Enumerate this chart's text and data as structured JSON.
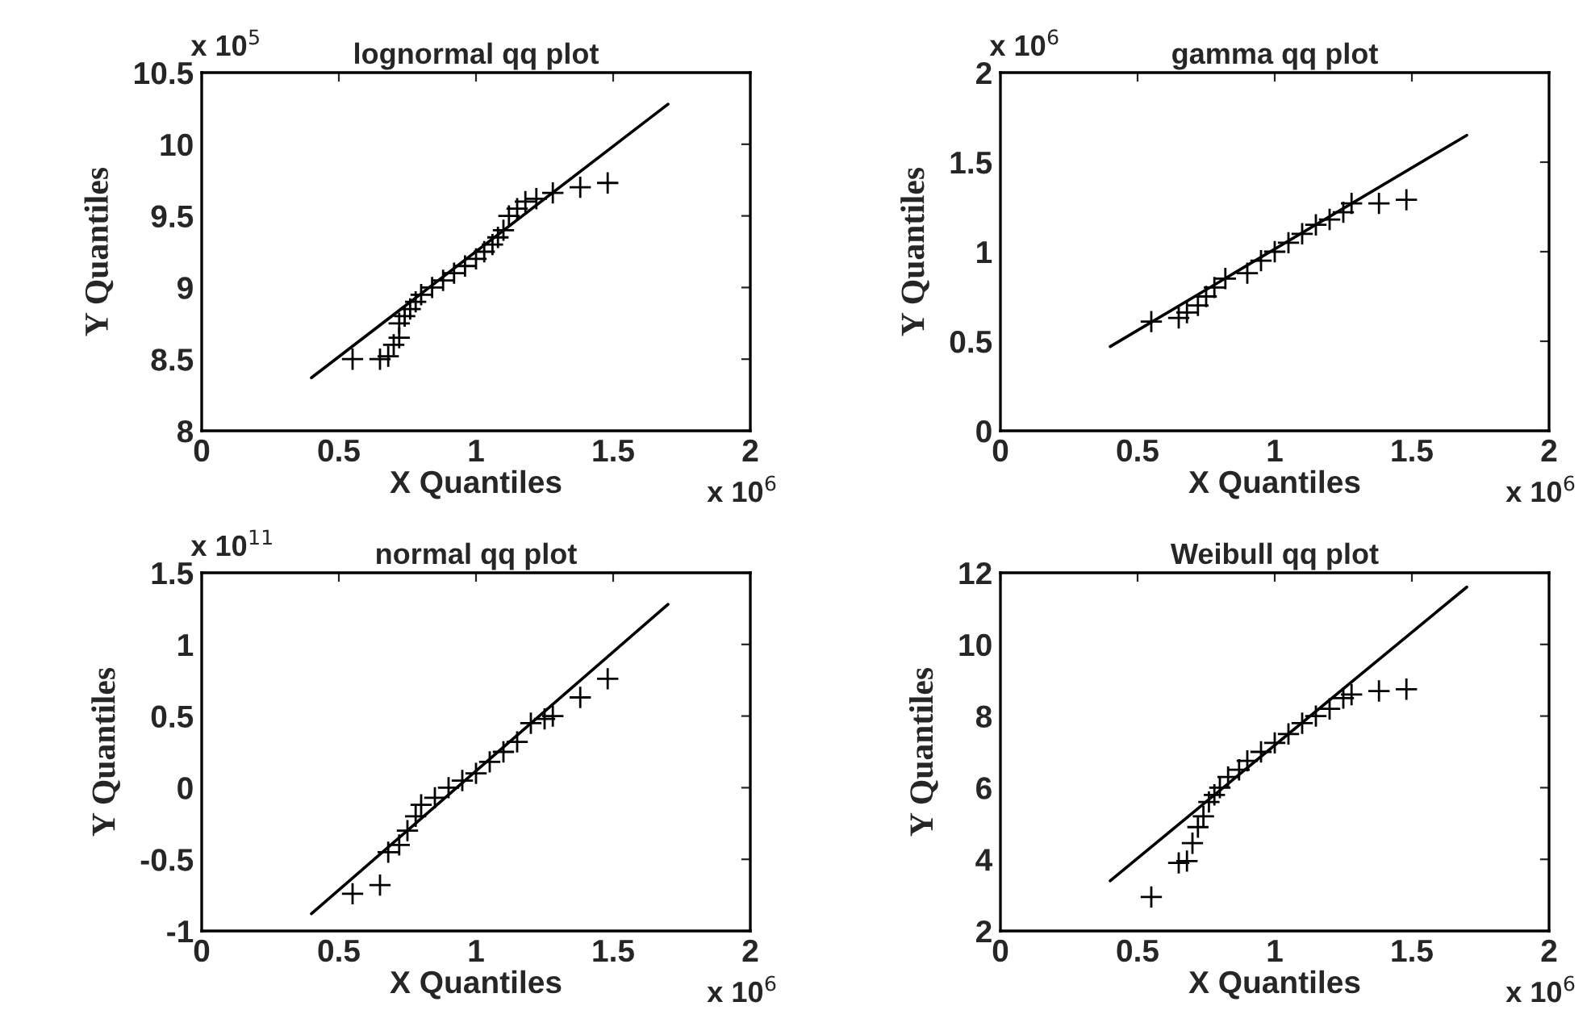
{
  "chart_data": [
    {
      "type": "scatter",
      "title": "lognormal qq plot",
      "xlabel": "X Quantiles",
      "ylabel": "Y Quantiles",
      "annotations": [
        "x 10$^{5}$",
        "x 10$^{6}$"
      ],
      "xlim": [
        0,
        2
      ],
      "xticks": [
        0,
        0.5,
        1,
        1.5,
        2
      ],
      "ylim": [
        8,
        10.5
      ],
      "yticks": [
        8,
        8.5,
        9,
        9.5,
        10,
        10.5
      ],
      "grid": false,
      "series": [
        {
          "marker": "cross",
          "color": "#000000",
          "x": [
            0.55,
            0.65,
            0.68,
            0.7,
            0.72,
            0.72,
            0.74,
            0.76,
            0.78,
            0.8,
            0.84,
            0.88,
            0.92,
            0.96,
            1.0,
            1.03,
            1.06,
            1.08,
            1.1,
            1.12,
            1.15,
            1.18,
            1.22,
            1.28,
            1.38,
            1.48
          ],
          "values": [
            8.5,
            8.5,
            8.52,
            8.6,
            8.65,
            8.75,
            8.8,
            8.85,
            8.9,
            8.95,
            9.0,
            9.05,
            9.1,
            9.15,
            9.2,
            9.25,
            9.3,
            9.35,
            9.4,
            9.5,
            9.55,
            9.6,
            9.62,
            9.66,
            9.7,
            9.73
          ]
        },
        {
          "type": "line",
          "marker": "none",
          "line_style": "solid",
          "color": "#000000",
          "x": [
            0.4,
            1.7
          ],
          "values": [
            8.37,
            10.28
          ]
        }
      ]
    },
    {
      "type": "scatter",
      "title": "gamma qq plot",
      "xlabel": "X Quantiles",
      "ylabel": "Y Quantiles",
      "annotations": [
        "x 10$^{6}$",
        "x 10$^{6}$"
      ],
      "xlim": [
        0,
        2
      ],
      "xticks": [
        0,
        0.5,
        1,
        1.5,
        2
      ],
      "ylim": [
        0,
        2
      ],
      "yticks": [
        0,
        0.5,
        1,
        1.5,
        2
      ],
      "grid": false,
      "series": [
        {
          "marker": "cross",
          "color": "#000000",
          "x": [
            0.55,
            0.65,
            0.68,
            0.72,
            0.75,
            0.78,
            0.82,
            0.9,
            0.95,
            1.0,
            1.05,
            1.1,
            1.15,
            1.2,
            1.25,
            1.28,
            1.38,
            1.48
          ],
          "values": [
            0.61,
            0.63,
            0.66,
            0.7,
            0.75,
            0.8,
            0.85,
            0.88,
            0.95,
            1.0,
            1.05,
            1.1,
            1.15,
            1.18,
            1.22,
            1.27,
            1.27,
            1.29
          ]
        },
        {
          "type": "line",
          "marker": "none",
          "line_style": "solid",
          "color": "#000000",
          "x": [
            0.4,
            1.7
          ],
          "values": [
            0.47,
            1.65
          ]
        }
      ]
    },
    {
      "type": "scatter",
      "title": "normal qq plot",
      "xlabel": "X Quantiles",
      "ylabel": "Y Quantiles",
      "annotations": [
        "x 10$^{11}$",
        "x 10$^{6}$"
      ],
      "xlim": [
        0,
        2
      ],
      "xticks": [
        0,
        0.5,
        1,
        1.5,
        2
      ],
      "ylim": [
        -1,
        1.5
      ],
      "yticks": [
        -1,
        -0.5,
        0,
        0.5,
        1,
        1.5
      ],
      "grid": false,
      "series": [
        {
          "marker": "cross",
          "color": "#000000",
          "x": [
            0.55,
            0.65,
            0.68,
            0.72,
            0.75,
            0.78,
            0.8,
            0.85,
            0.9,
            0.95,
            1.0,
            1.05,
            1.1,
            1.15,
            1.2,
            1.25,
            1.28,
            1.38,
            1.48
          ],
          "values": [
            -0.74,
            -0.68,
            -0.45,
            -0.4,
            -0.3,
            -0.2,
            -0.12,
            -0.07,
            0.0,
            0.05,
            0.1,
            0.18,
            0.25,
            0.32,
            0.45,
            0.48,
            0.5,
            0.63,
            0.76
          ]
        },
        {
          "type": "line",
          "marker": "none",
          "line_style": "solid",
          "color": "#000000",
          "x": [
            0.4,
            1.7
          ],
          "values": [
            -0.88,
            1.28
          ]
        }
      ]
    },
    {
      "type": "scatter",
      "title": "Weibull qq plot",
      "xlabel": "X Quantiles",
      "ylabel": "Y Quantiles",
      "annotations": [
        "x 10$^{6}$"
      ],
      "xlim": [
        0,
        2
      ],
      "xticks": [
        0,
        0.5,
        1,
        1.5,
        2
      ],
      "ylim": [
        2,
        12
      ],
      "yticks": [
        2,
        4,
        6,
        8,
        10,
        12
      ],
      "grid": false,
      "series": [
        {
          "marker": "cross",
          "color": "#000000",
          "x": [
            0.55,
            0.65,
            0.68,
            0.7,
            0.72,
            0.74,
            0.76,
            0.78,
            0.8,
            0.83,
            0.87,
            0.9,
            0.95,
            1.0,
            1.05,
            1.1,
            1.15,
            1.2,
            1.25,
            1.28,
            1.38,
            1.48
          ],
          "values": [
            2.95,
            3.9,
            3.95,
            4.45,
            4.9,
            5.2,
            5.6,
            5.8,
            6.0,
            6.3,
            6.5,
            6.75,
            7.0,
            7.25,
            7.5,
            7.8,
            8.0,
            8.2,
            8.5,
            8.6,
            8.7,
            8.75
          ]
        },
        {
          "type": "line",
          "marker": "none",
          "line_style": "solid",
          "color": "#000000",
          "x": [
            0.4,
            1.7
          ],
          "values": [
            3.4,
            11.6
          ]
        }
      ]
    }
  ]
}
